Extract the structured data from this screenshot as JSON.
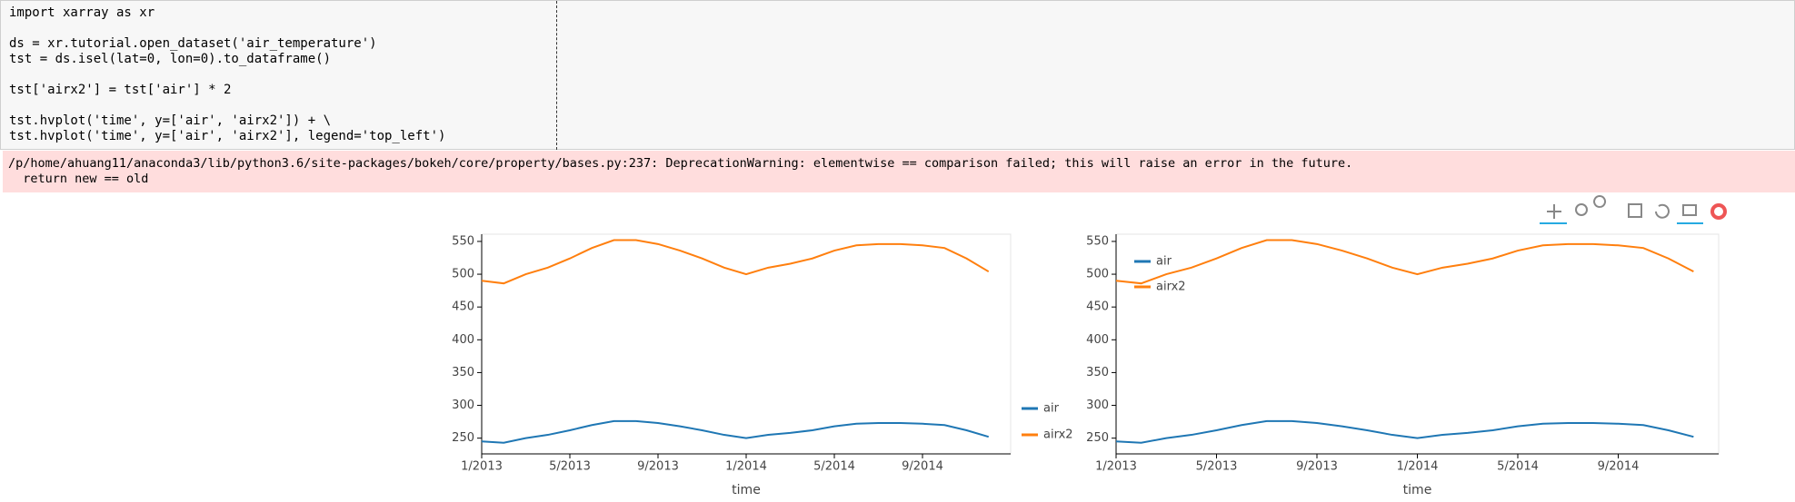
{
  "code": {
    "lines": [
      "import xarray as xr",
      "ds = xr.tutorial.open_dataset('air_temperature')",
      "tst = ds.isel(lat=0, lon=0).to_dataframe()",
      "tst['airx2'] = tst['air'] * 2",
      "tst.hvplot('time', y=['air', 'airx2']) + \\",
      "tst.hvplot('time', y=['air', 'airx2'], legend='top_left')"
    ]
  },
  "warning": {
    "lines": [
      "/p/home/ahuang11/anaconda3/lib/python3.6/site-packages/bokeh/core/property/bases.py:237: DeprecationWarning: elementwise == comparison failed; this will raise an error in the future.",
      "  return new == old"
    ]
  },
  "chart_data": [
    {
      "type": "line",
      "xlabel": "time",
      "legend": "right",
      "x": [
        "1/2013",
        "2/2013",
        "3/2013",
        "4/2013",
        "5/2013",
        "6/2013",
        "7/2013",
        "8/2013",
        "9/2013",
        "10/2013",
        "11/2013",
        "12/2013",
        "1/2014",
        "2/2014",
        "3/2014",
        "4/2014",
        "5/2014",
        "6/2014",
        "7/2014",
        "8/2014",
        "9/2014",
        "10/2014",
        "11/2014",
        "12/2014"
      ],
      "xlim": [
        "1/2013",
        "1/2015"
      ],
      "xticks": [
        "1/2013",
        "5/2013",
        "9/2013",
        "1/2014",
        "5/2014",
        "9/2014"
      ],
      "ylim": [
        226,
        561
      ],
      "yticks": [
        250,
        300,
        350,
        400,
        450,
        500,
        550
      ],
      "series": [
        {
          "name": "air",
          "color": "#1f77b4",
          "values": [
            245,
            243,
            250,
            255,
            262,
            270,
            276,
            276,
            273,
            268,
            262,
            255,
            250,
            255,
            258,
            262,
            268,
            272,
            273,
            273,
            272,
            270,
            262,
            252
          ]
        },
        {
          "name": "airx2",
          "color": "#ff7f0e",
          "values": [
            490,
            486,
            500,
            510,
            524,
            540,
            552,
            552,
            546,
            536,
            524,
            510,
            500,
            510,
            516,
            524,
            536,
            544,
            546,
            546,
            544,
            540,
            524,
            504
          ]
        }
      ]
    },
    {
      "type": "line",
      "xlabel": "time",
      "legend": "top_left",
      "x": [
        "1/2013",
        "2/2013",
        "3/2013",
        "4/2013",
        "5/2013",
        "6/2013",
        "7/2013",
        "8/2013",
        "9/2013",
        "10/2013",
        "11/2013",
        "12/2013",
        "1/2014",
        "2/2014",
        "3/2014",
        "4/2014",
        "5/2014",
        "6/2014",
        "7/2014",
        "8/2014",
        "9/2014",
        "10/2014",
        "11/2014",
        "12/2014"
      ],
      "xlim": [
        "1/2013",
        "1/2015"
      ],
      "xticks": [
        "1/2013",
        "5/2013",
        "9/2013",
        "1/2014",
        "5/2014",
        "9/2014"
      ],
      "ylim": [
        226,
        561
      ],
      "yticks": [
        250,
        300,
        350,
        400,
        450,
        500,
        550
      ],
      "series": [
        {
          "name": "air",
          "color": "#1f77b4",
          "values": [
            245,
            243,
            250,
            255,
            262,
            270,
            276,
            276,
            273,
            268,
            262,
            255,
            250,
            255,
            258,
            262,
            268,
            272,
            273,
            273,
            272,
            270,
            262,
            252
          ]
        },
        {
          "name": "airx2",
          "color": "#ff7f0e",
          "values": [
            490,
            486,
            500,
            510,
            524,
            540,
            552,
            552,
            546,
            536,
            524,
            510,
            500,
            510,
            516,
            524,
            536,
            544,
            546,
            546,
            544,
            540,
            524,
            504
          ]
        }
      ]
    }
  ]
}
